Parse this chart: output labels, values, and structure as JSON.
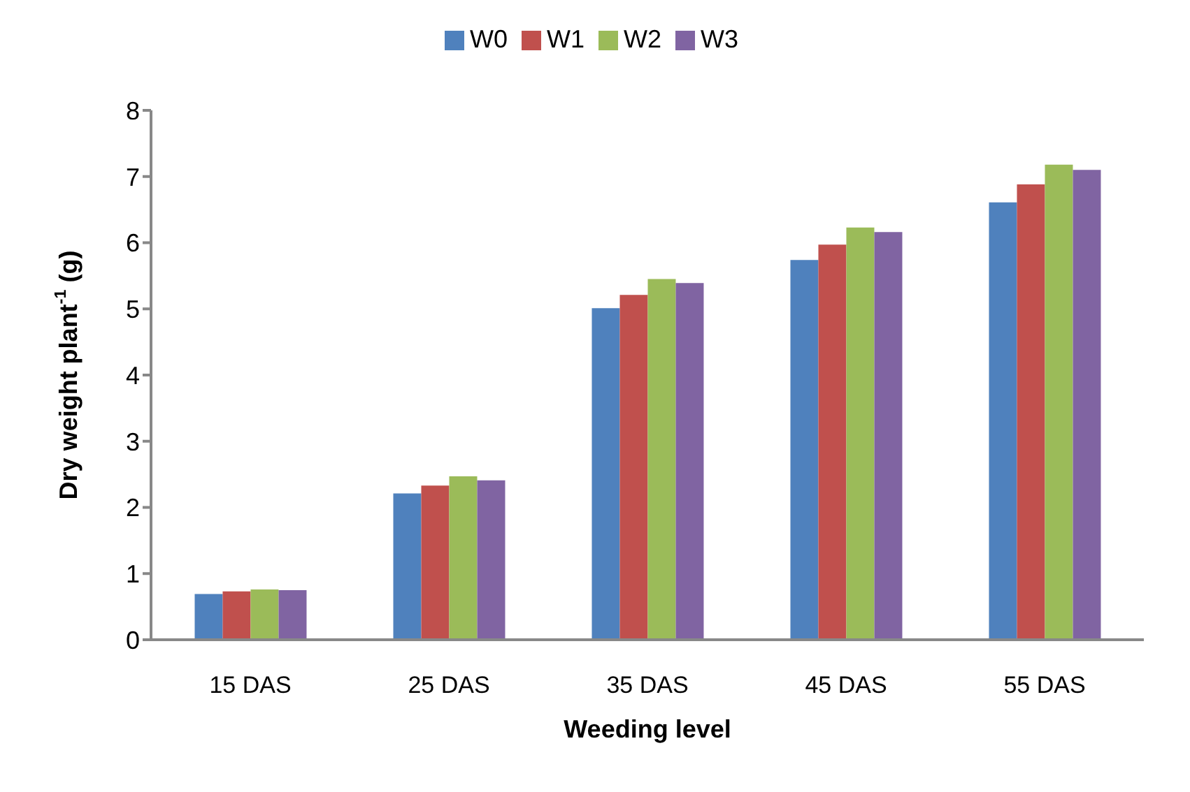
{
  "chart_data": {
    "type": "bar",
    "xlabel": "Weeding level",
    "ylabel": "Dry weight plant$^{-1}$ (g)",
    "categories": [
      "15 DAS",
      "25 DAS",
      "35 DAS",
      "45 DAS",
      "55 DAS"
    ],
    "series": [
      {
        "name": "W0",
        "color": "#4f81bd",
        "values": [
          0.69,
          2.21,
          5.01,
          5.74,
          6.61
        ]
      },
      {
        "name": "W1",
        "color": "#c0504d",
        "values": [
          0.73,
          2.33,
          5.21,
          5.97,
          6.88
        ]
      },
      {
        "name": "W2",
        "color": "#9bbb59",
        "values": [
          0.76,
          2.47,
          5.45,
          6.23,
          7.18
        ]
      },
      {
        "name": "W3",
        "color": "#8064a2",
        "values": [
          0.75,
          2.41,
          5.39,
          6.16,
          7.1
        ]
      }
    ],
    "ylim": [
      0,
      8
    ],
    "yticks": [
      0,
      1,
      2,
      3,
      4,
      5,
      6,
      7,
      8
    ],
    "grid": false,
    "legend": "top"
  }
}
